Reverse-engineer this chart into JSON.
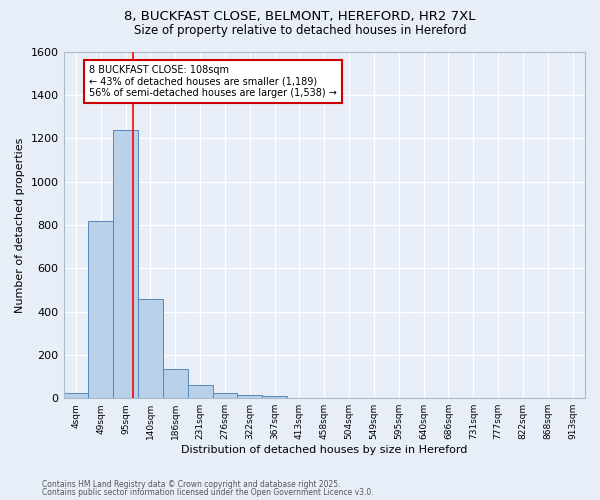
{
  "title_line1": "8, BUCKFAST CLOSE, BELMONT, HEREFORD, HR2 7XL",
  "title_line2": "Size of property relative to detached houses in Hereford",
  "xlabel": "Distribution of detached houses by size in Hereford",
  "ylabel": "Number of detached properties",
  "bar_categories": [
    "4sqm",
    "49sqm",
    "95sqm",
    "140sqm",
    "186sqm",
    "231sqm",
    "276sqm",
    "322sqm",
    "367sqm",
    "413sqm",
    "458sqm",
    "504sqm",
    "549sqm",
    "595sqm",
    "640sqm",
    "686sqm",
    "731sqm",
    "777sqm",
    "822sqm",
    "868sqm",
    "913sqm"
  ],
  "bar_values": [
    25,
    820,
    1240,
    460,
    135,
    60,
    25,
    15,
    8,
    0,
    0,
    0,
    0,
    0,
    0,
    0,
    0,
    0,
    0,
    0,
    0
  ],
  "bar_color": "#b8d0e8",
  "bar_edge_color": "#5588bb",
  "background_color": "#e8eef8",
  "grid_color": "#ffffff",
  "red_line_x": 2.29,
  "annotation_text": "8 BUCKFAST CLOSE: 108sqm\n← 43% of detached houses are smaller (1,189)\n56% of semi-detached houses are larger (1,538) →",
  "annotation_box_facecolor": "#ffffff",
  "annotation_box_edge_color": "#cc0000",
  "ylim": [
    0,
    1600
  ],
  "yticks": [
    0,
    200,
    400,
    600,
    800,
    1000,
    1200,
    1400,
    1600
  ],
  "footer_line1": "Contains HM Land Registry data © Crown copyright and database right 2025.",
  "footer_line2": "Contains public sector information licensed under the Open Government Licence v3.0."
}
